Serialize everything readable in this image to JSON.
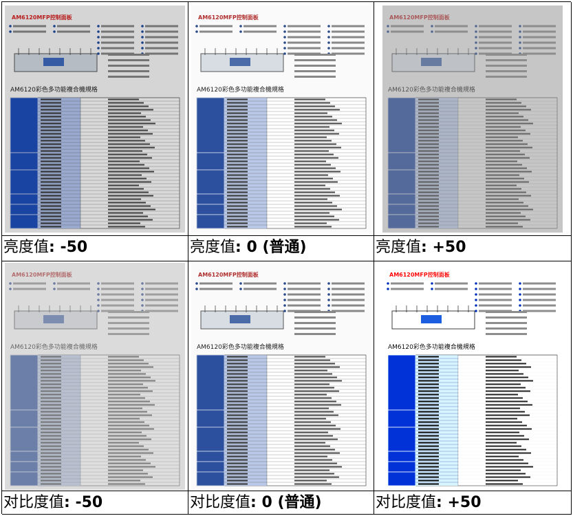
{
  "document": {
    "title": "AM6120MFP控制面板",
    "subtitle": "AM6120彩色多功能複合機規格"
  },
  "cells": [
    {
      "label": "亮度值",
      "setting": ": -50"
    },
    {
      "label": "亮度值",
      "setting": ": 0 (普通)"
    },
    {
      "label": "亮度值",
      "setting": ": +50"
    },
    {
      "label": "对比度值",
      "setting": ": -50"
    },
    {
      "label": "对比度值",
      "setting": ": 0 (普通)"
    },
    {
      "label": "对比度值",
      "setting": ": +50"
    }
  ]
}
